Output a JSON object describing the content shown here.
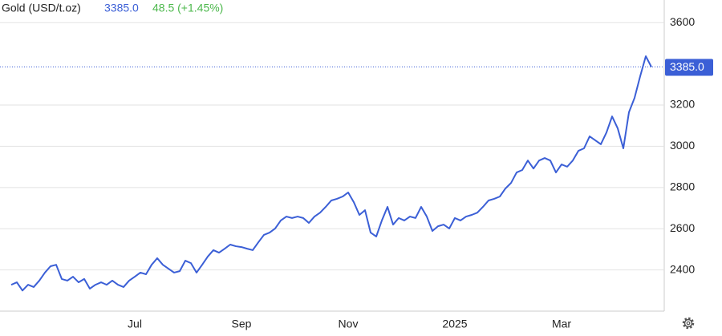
{
  "header": {
    "name": "Gold (USD/t.oz)",
    "price": "3385.0",
    "change": "48.5 (+1.45%)"
  },
  "chart_data": {
    "type": "line",
    "categories": [
      null,
      null,
      null,
      null,
      null,
      null,
      null,
      null,
      null,
      null,
      null,
      null,
      null,
      null,
      null,
      null,
      null,
      null,
      null,
      null,
      null,
      null,
      "Jul",
      null,
      null,
      null,
      null,
      null,
      null,
      null,
      null,
      null,
      null,
      null,
      null,
      null,
      null,
      null,
      null,
      null,
      null,
      "Sep",
      null,
      null,
      null,
      null,
      null,
      null,
      null,
      null,
      null,
      null,
      null,
      null,
      null,
      null,
      null,
      null,
      null,
      null,
      "Nov",
      null,
      null,
      null,
      null,
      null,
      null,
      null,
      null,
      null,
      null,
      null,
      null,
      null,
      null,
      null,
      null,
      null,
      null,
      "2025",
      null,
      null,
      null,
      null,
      null,
      null,
      null,
      null,
      null,
      null,
      null,
      null,
      null,
      null,
      null,
      null,
      null,
      null,
      "Mar",
      null,
      null,
      null,
      null,
      null,
      null,
      null,
      null,
      null,
      null,
      null,
      null,
      null,
      null,
      null,
      null
    ],
    "series": [
      {
        "name": "Gold",
        "color": "#3b5fd6",
        "values": [
          2328,
          2340,
          2300,
          2328,
          2317,
          2348,
          2387,
          2418,
          2425,
          2356,
          2348,
          2367,
          2340,
          2356,
          2309,
          2328,
          2340,
          2328,
          2348,
          2328,
          2317,
          2348,
          2367,
          2387,
          2379,
          2425,
          2457,
          2425,
          2406,
          2387,
          2394,
          2445,
          2433,
          2387,
          2425,
          2465,
          2496,
          2484,
          2503,
          2523,
          2515,
          2511,
          2503,
          2496,
          2534,
          2570,
          2581,
          2601,
          2640,
          2659,
          2652,
          2659,
          2652,
          2628,
          2659,
          2678,
          2706,
          2737,
          2745,
          2756,
          2776,
          2729,
          2667,
          2690,
          2581,
          2562,
          2640,
          2706,
          2620,
          2652,
          2640,
          2659,
          2652,
          2706,
          2659,
          2589,
          2612,
          2620,
          2601,
          2652,
          2640,
          2659,
          2667,
          2678,
          2706,
          2737,
          2745,
          2756,
          2795,
          2822,
          2873,
          2885,
          2931,
          2892,
          2931,
          2943,
          2931,
          2873,
          2912,
          2901,
          2931,
          2978,
          2990,
          3048,
          3029,
          3010,
          3067,
          3145,
          3087,
          2990,
          3165,
          3235,
          3340,
          3437,
          3385
        ]
      }
    ],
    "ylim": [
      2200,
      3710
    ],
    "yticks": [
      2400,
      2600,
      2800,
      3000,
      3200,
      3600
    ],
    "grid": true
  }
}
